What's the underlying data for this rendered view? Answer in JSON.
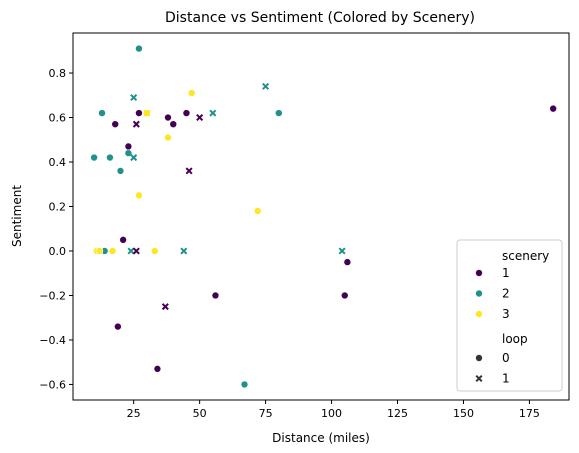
{
  "chart_data": {
    "type": "scatter",
    "title": "Distance vs Sentiment (Colored by Scenery)",
    "xlabel": "Distance (miles)",
    "ylabel": "Sentiment",
    "xlim": [
      2,
      190
    ],
    "ylim": [
      -0.67,
      0.98
    ],
    "xticks": [
      25,
      50,
      75,
      100,
      125,
      150,
      175
    ],
    "yticks": [
      -0.6,
      -0.4,
      -0.2,
      0.0,
      0.2,
      0.4,
      0.6,
      0.8
    ],
    "grid": false,
    "legend": {
      "position": "lower-right",
      "hue_title": "scenery",
      "hue_entries": [
        {
          "label": "1",
          "color": "#440154"
        },
        {
          "label": "2",
          "color": "#21918c"
        },
        {
          "label": "3",
          "color": "#fde725"
        }
      ],
      "style_title": "loop",
      "style_entries": [
        {
          "label": "0",
          "marker": "circle"
        },
        {
          "label": "1",
          "marker": "x"
        }
      ]
    },
    "points": [
      {
        "x": 27,
        "y": 0.91,
        "scenery": 2,
        "loop": 0
      },
      {
        "x": 10,
        "y": 0.42,
        "scenery": 2,
        "loop": 0
      },
      {
        "x": 13,
        "y": 0.62,
        "scenery": 2,
        "loop": 0
      },
      {
        "x": 16,
        "y": 0.42,
        "scenery": 2,
        "loop": 0
      },
      {
        "x": 14,
        "y": 0.0,
        "scenery": 2,
        "loop": 0
      },
      {
        "x": 20,
        "y": 0.36,
        "scenery": 2,
        "loop": 0
      },
      {
        "x": 23,
        "y": 0.44,
        "scenery": 2,
        "loop": 0
      },
      {
        "x": 80,
        "y": 0.62,
        "scenery": 2,
        "loop": 0
      },
      {
        "x": 67,
        "y": -0.6,
        "scenery": 2,
        "loop": 0
      },
      {
        "x": 18,
        "y": 0.57,
        "scenery": 1,
        "loop": 0
      },
      {
        "x": 23,
        "y": 0.47,
        "scenery": 1,
        "loop": 0
      },
      {
        "x": 27,
        "y": 0.62,
        "scenery": 1,
        "loop": 0
      },
      {
        "x": 38,
        "y": 0.6,
        "scenery": 1,
        "loop": 0
      },
      {
        "x": 40,
        "y": 0.57,
        "scenery": 1,
        "loop": 0
      },
      {
        "x": 45,
        "y": 0.62,
        "scenery": 1,
        "loop": 0
      },
      {
        "x": 21,
        "y": 0.05,
        "scenery": 1,
        "loop": 0
      },
      {
        "x": 19,
        "y": -0.34,
        "scenery": 1,
        "loop": 0
      },
      {
        "x": 34,
        "y": -0.53,
        "scenery": 1,
        "loop": 0
      },
      {
        "x": 56,
        "y": -0.2,
        "scenery": 1,
        "loop": 0
      },
      {
        "x": 105,
        "y": -0.2,
        "scenery": 1,
        "loop": 0
      },
      {
        "x": 106,
        "y": -0.05,
        "scenery": 1,
        "loop": 0
      },
      {
        "x": 184,
        "y": 0.64,
        "scenery": 1,
        "loop": 0
      },
      {
        "x": 47,
        "y": 0.71,
        "scenery": 3,
        "loop": 0
      },
      {
        "x": 30,
        "y": 0.62,
        "scenery": 3,
        "loop": 0
      },
      {
        "x": 38,
        "y": 0.51,
        "scenery": 3,
        "loop": 0
      },
      {
        "x": 27,
        "y": 0.25,
        "scenery": 3,
        "loop": 0
      },
      {
        "x": 72,
        "y": 0.18,
        "scenery": 3,
        "loop": 0
      },
      {
        "x": 11,
        "y": 0.0,
        "scenery": 3,
        "loop": 0
      },
      {
        "x": 12,
        "y": 0.0,
        "scenery": 3,
        "loop": 0
      },
      {
        "x": 17,
        "y": 0.0,
        "scenery": 3,
        "loop": 0
      },
      {
        "x": 33,
        "y": 0.0,
        "scenery": 3,
        "loop": 0
      },
      {
        "x": 25,
        "y": 0.69,
        "scenery": 2,
        "loop": 1
      },
      {
        "x": 75,
        "y": 0.74,
        "scenery": 2,
        "loop": 1
      },
      {
        "x": 55,
        "y": 0.62,
        "scenery": 2,
        "loop": 1
      },
      {
        "x": 25,
        "y": 0.42,
        "scenery": 2,
        "loop": 1
      },
      {
        "x": 24,
        "y": 0.0,
        "scenery": 2,
        "loop": 1
      },
      {
        "x": 44,
        "y": 0.0,
        "scenery": 2,
        "loop": 1
      },
      {
        "x": 104,
        "y": 0.0,
        "scenery": 2,
        "loop": 1
      },
      {
        "x": 26,
        "y": 0.57,
        "scenery": 1,
        "loop": 1
      },
      {
        "x": 50,
        "y": 0.6,
        "scenery": 1,
        "loop": 1
      },
      {
        "x": 46,
        "y": 0.36,
        "scenery": 1,
        "loop": 1
      },
      {
        "x": 26,
        "y": 0.0,
        "scenery": 1,
        "loop": 1
      },
      {
        "x": 37,
        "y": -0.25,
        "scenery": 1,
        "loop": 1
      },
      {
        "x": 30,
        "y": 0.62,
        "scenery": 3,
        "loop": 1
      }
    ]
  }
}
